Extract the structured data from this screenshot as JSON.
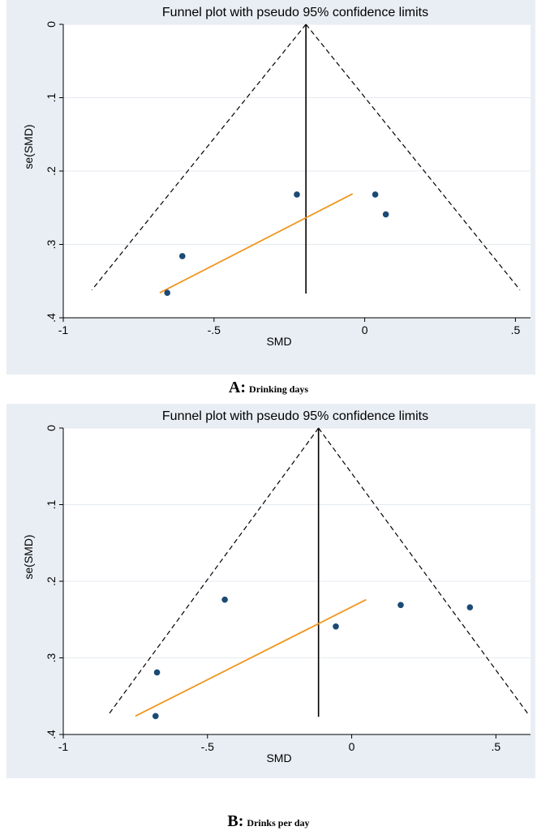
{
  "chart_data": [
    {
      "type": "scatter",
      "title": "Funnel plot with pseudo 95% confidence limits",
      "xlabel": "SMD",
      "ylabel": "se(SMD)",
      "xlim": [
        -1.0,
        0.55
      ],
      "ylim": [
        0,
        0.4
      ],
      "y_reversed": true,
      "x_ticks": [
        -1,
        -0.5,
        0,
        0.5
      ],
      "x_tick_labels": [
        "-1",
        "-.5",
        "0",
        ".5"
      ],
      "y_ticks": [
        0,
        0.1,
        0.2,
        0.3,
        0.4
      ],
      "y_tick_labels": [
        "0",
        ".1",
        ".2",
        ".3",
        ".4"
      ],
      "grid": true,
      "pooled_smd": -0.195,
      "funnel": {
        "apex": [
          -0.195,
          0
        ],
        "left_base": [
          -0.905,
          0.362
        ],
        "right_base": [
          0.515,
          0.362
        ]
      },
      "vertical_line": {
        "x": -0.195,
        "y_from": 0,
        "y_to": 0.367
      },
      "egger_line": {
        "x1": -0.68,
        "y1": 0.366,
        "x2": -0.04,
        "y2": 0.231,
        "color": "#f0961e"
      },
      "points": [
        {
          "x": -0.655,
          "y": 0.366
        },
        {
          "x": -0.605,
          "y": 0.316
        },
        {
          "x": -0.225,
          "y": 0.232
        },
        {
          "x": 0.035,
          "y": 0.232
        },
        {
          "x": 0.07,
          "y": 0.259
        }
      ],
      "point_color": "#1b4a75",
      "caption_letter": "A:",
      "caption_text": "Drinking days"
    },
    {
      "type": "scatter",
      "title": "Funnel plot with pseudo 95% confidence limits",
      "xlabel": "SMD",
      "ylabel": "se(SMD)",
      "xlim": [
        -1.0,
        0.62
      ],
      "ylim": [
        0,
        0.4
      ],
      "y_reversed": true,
      "x_ticks": [
        -1,
        -0.5,
        0,
        0.5
      ],
      "x_tick_labels": [
        "-1",
        "-.5",
        "0",
        ".5"
      ],
      "y_ticks": [
        0,
        0.1,
        0.2,
        0.3,
        0.4
      ],
      "y_tick_labels": [
        "0",
        ".1",
        ".2",
        ".3",
        ".4"
      ],
      "grid": true,
      "pooled_smd": -0.115,
      "funnel": {
        "apex": [
          -0.115,
          0
        ],
        "left_base": [
          -0.845,
          0.375
        ],
        "right_base": [
          0.615,
          0.375
        ]
      },
      "vertical_line": {
        "x": -0.115,
        "y_from": 0,
        "y_to": 0.377
      },
      "egger_line": {
        "x1": -0.75,
        "y1": 0.376,
        "x2": 0.05,
        "y2": 0.224,
        "color": "#f0961e"
      },
      "points": [
        {
          "x": -0.675,
          "y": 0.319
        },
        {
          "x": -0.68,
          "y": 0.376
        },
        {
          "x": -0.44,
          "y": 0.224
        },
        {
          "x": -0.055,
          "y": 0.259
        },
        {
          "x": 0.17,
          "y": 0.231
        },
        {
          "x": 0.41,
          "y": 0.234
        }
      ],
      "point_color": "#1b4a75",
      "caption_letter": "B:",
      "caption_text": "Drinks per day"
    }
  ]
}
